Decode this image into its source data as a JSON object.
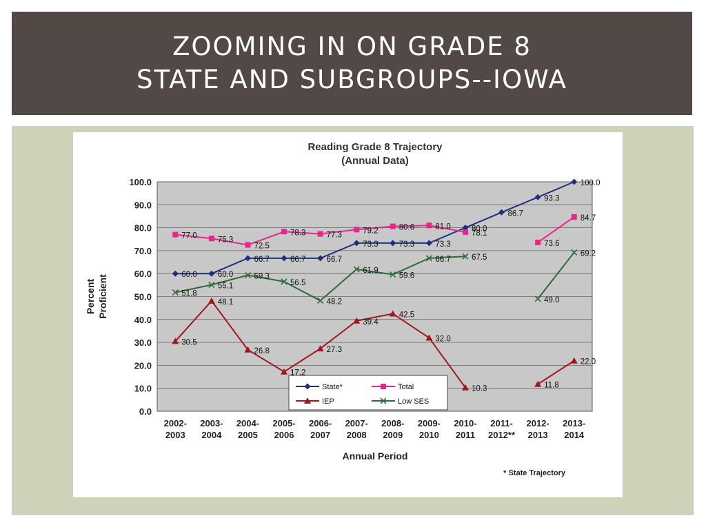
{
  "slide": {
    "title_line1": "ZOOMING IN ON GRADE 8",
    "title_line2": "STATE AND SUBGROUPS--IOWA"
  },
  "colors": {
    "banner_bg": "#524946",
    "panel_bg": "#cdd2b8",
    "plot_bg": "#c8c8c8"
  },
  "chart_data": {
    "type": "line",
    "title": "Reading Grade 8 Trajectory",
    "subtitle": "(Annual Data)",
    "xlabel": "Annual Period",
    "ylabel_line1": "Percent",
    "ylabel_line2": "Proficient",
    "ylim": [
      0,
      100
    ],
    "yticks": [
      "0.0",
      "10.0",
      "20.0",
      "30.0",
      "40.0",
      "50.0",
      "60.0",
      "70.0",
      "80.0",
      "90.0",
      "100.0"
    ],
    "grid": true,
    "legend_position": "bottom-center",
    "footnote": "* State Trajectory",
    "categories": [
      [
        "2002-",
        "2003"
      ],
      [
        "2003-",
        "2004"
      ],
      [
        "2004-",
        "2005"
      ],
      [
        "2005-",
        "2006"
      ],
      [
        "2006-",
        "2007"
      ],
      [
        "2007-",
        "2008"
      ],
      [
        "2008-",
        "2009"
      ],
      [
        "2009-",
        "2010"
      ],
      [
        "2010-",
        "2011"
      ],
      [
        "2011-",
        "2012**"
      ],
      [
        "2012-",
        "2013"
      ],
      [
        "2013-",
        "2014"
      ]
    ],
    "series": [
      {
        "name": "State*",
        "color": "#1f2f7a",
        "marker": "diamond",
        "values": [
          60.0,
          60.0,
          66.7,
          66.7,
          66.7,
          73.3,
          73.3,
          73.3,
          80.0,
          86.7,
          93.3,
          100.0
        ],
        "labels": [
          "60.0",
          "60.0",
          "66.7",
          "66.7",
          "66.7",
          "73.3",
          "73.3",
          "73.3",
          "80.0",
          "86.7",
          "93.3",
          "100.0"
        ]
      },
      {
        "name": "Total",
        "color": "#e8268a",
        "marker": "square",
        "values": [
          77.0,
          75.3,
          72.5,
          78.3,
          77.3,
          79.2,
          80.6,
          81.0,
          78.1,
          null,
          73.6,
          84.7
        ],
        "labels": [
          "77.0",
          "75.3",
          "72.5",
          "78.3",
          "77.3",
          "79.2",
          "80.6",
          "81.0",
          "78.1",
          "",
          "73.6",
          "84.7"
        ]
      },
      {
        "name": "IEP",
        "color": "#a0161c",
        "marker": "triangle",
        "values": [
          30.5,
          48.1,
          26.8,
          17.2,
          27.3,
          39.4,
          42.5,
          32.0,
          10.3,
          null,
          11.8,
          22.0
        ],
        "labels": [
          "30.5",
          "48.1",
          "26.8",
          "17.2",
          "27.3",
          "39.4",
          "42.5",
          "32.0",
          "10.3",
          "",
          "11.8",
          "22.0"
        ]
      },
      {
        "name": "Low SES",
        "color": "#2e6b3a",
        "marker": "x",
        "values": [
          51.8,
          55.1,
          59.3,
          56.5,
          48.2,
          61.9,
          59.6,
          66.7,
          67.5,
          null,
          49.0,
          69.2
        ],
        "labels": [
          "51.8",
          "55.1",
          "59.3",
          "56.5",
          "48.2",
          "61.9",
          "59.6",
          "66.7",
          "67.5",
          "",
          "49.0",
          "69.2"
        ]
      }
    ]
  }
}
